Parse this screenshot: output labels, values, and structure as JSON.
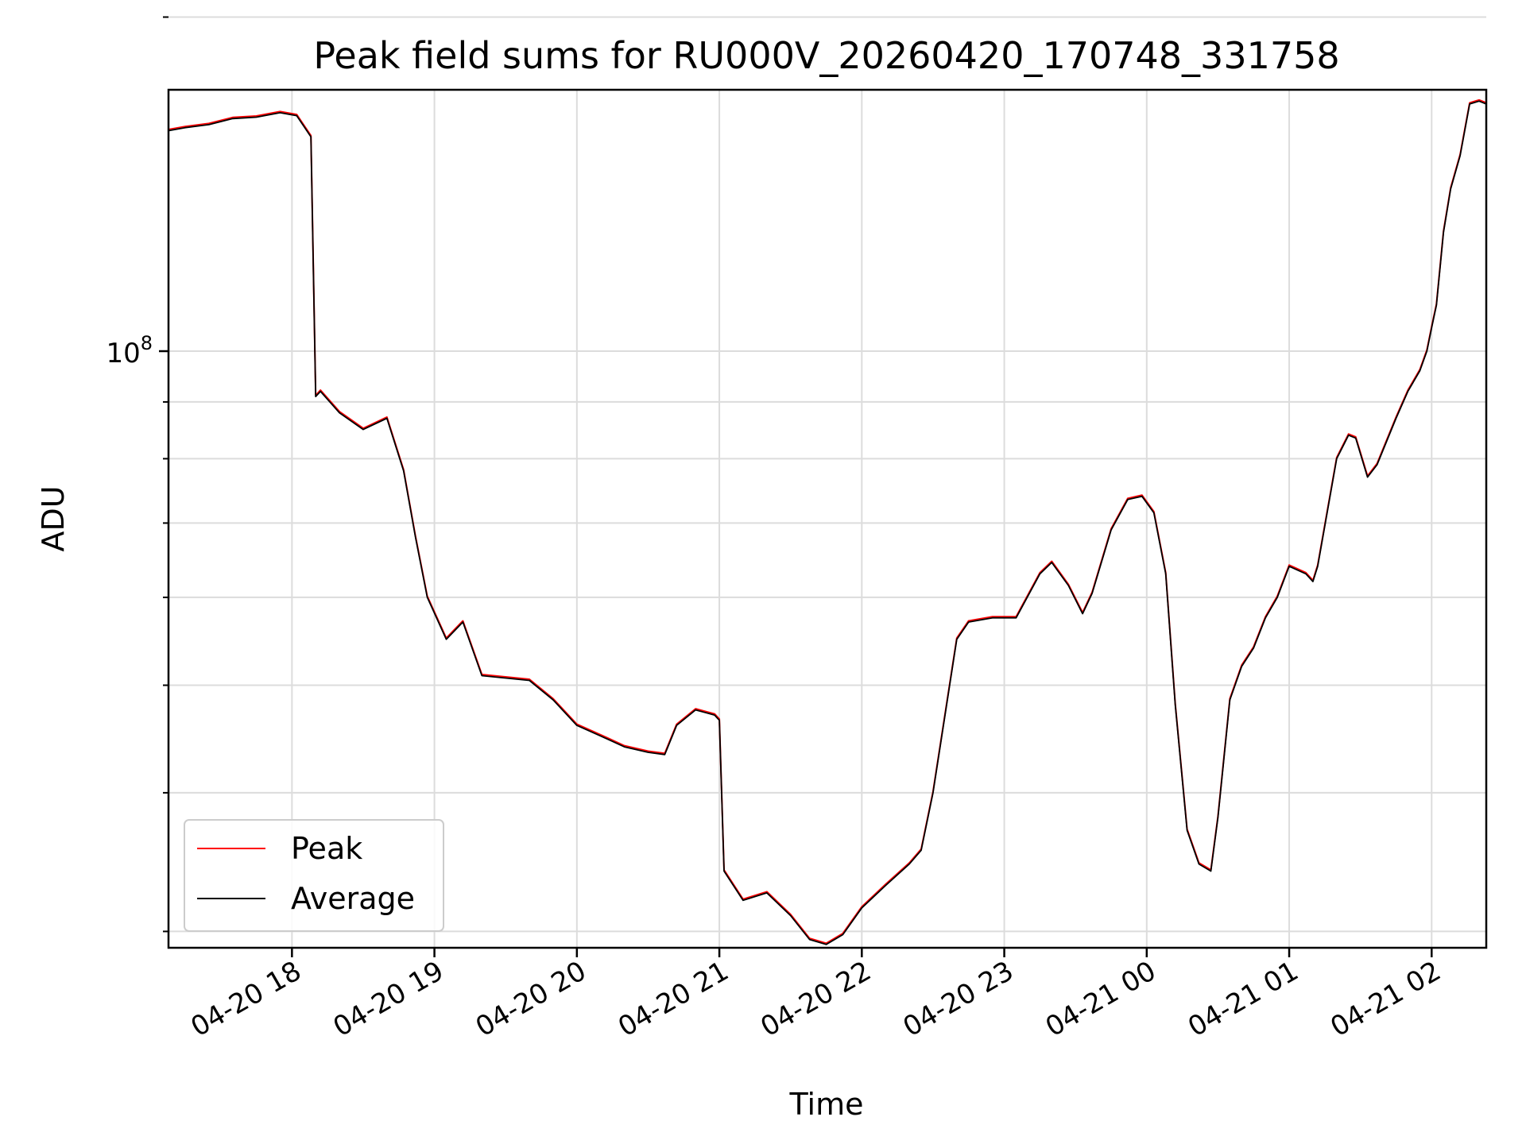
{
  "chart_data": {
    "type": "line",
    "title": "Peak field sums for RU000V_20260420_170748_331758",
    "xlabel": "Time",
    "ylabel": "ADU",
    "y_scale": "log",
    "grid": true,
    "legend_position": "lower-left",
    "xlim": [
      "2026-04-20 17:08",
      "2026-04-21 02:23"
    ],
    "ylim": [
      29000000,
      172000000
    ],
    "x_ticks": [
      {
        "t": "2026-04-20 18:00",
        "label": "04-20 18"
      },
      {
        "t": "2026-04-20 19:00",
        "label": "04-20 19"
      },
      {
        "t": "2026-04-20 20:00",
        "label": "04-20 20"
      },
      {
        "t": "2026-04-20 21:00",
        "label": "04-20 21"
      },
      {
        "t": "2026-04-20 22:00",
        "label": "04-20 22"
      },
      {
        "t": "2026-04-20 23:00",
        "label": "04-20 23"
      },
      {
        "t": "2026-04-21 00:00",
        "label": "04-21 00"
      },
      {
        "t": "2026-04-21 01:00",
        "label": "04-21 01"
      },
      {
        "t": "2026-04-21 02:00",
        "label": "04-21 02"
      }
    ],
    "y_major_ticks": [
      {
        "value": 100000000,
        "label_base": "10",
        "label_exp": "8"
      }
    ],
    "y_minor_ticks": [
      30000000,
      40000000,
      50000000,
      60000000,
      70000000,
      80000000,
      90000000,
      200000000
    ],
    "series": [
      {
        "name": "Peak",
        "color": "#ff0000"
      },
      {
        "name": "Average",
        "color": "#000000"
      }
    ],
    "x": [
      "2026-04-20 17:08",
      "2026-04-20 17:15",
      "2026-04-20 17:25",
      "2026-04-20 17:35",
      "2026-04-20 17:45",
      "2026-04-20 17:55",
      "2026-04-20 18:02",
      "2026-04-20 18:08",
      "2026-04-20 18:10",
      "2026-04-20 18:12",
      "2026-04-20 18:20",
      "2026-04-20 18:30",
      "2026-04-20 18:40",
      "2026-04-20 18:47",
      "2026-04-20 18:52",
      "2026-04-20 18:57",
      "2026-04-20 19:05",
      "2026-04-20 19:12",
      "2026-04-20 19:20",
      "2026-04-20 19:40",
      "2026-04-20 19:50",
      "2026-04-20 20:00",
      "2026-04-20 20:10",
      "2026-04-20 20:20",
      "2026-04-20 20:30",
      "2026-04-20 20:37",
      "2026-04-20 20:42",
      "2026-04-20 20:50",
      "2026-04-20 20:58",
      "2026-04-20 21:00",
      "2026-04-20 21:02",
      "2026-04-20 21:10",
      "2026-04-20 21:20",
      "2026-04-20 21:30",
      "2026-04-20 21:38",
      "2026-04-20 21:45",
      "2026-04-20 21:52",
      "2026-04-20 22:00",
      "2026-04-20 22:10",
      "2026-04-20 22:20",
      "2026-04-20 22:25",
      "2026-04-20 22:30",
      "2026-04-20 22:40",
      "2026-04-20 22:45",
      "2026-04-20 22:55",
      "2026-04-20 23:05",
      "2026-04-20 23:15",
      "2026-04-20 23:20",
      "2026-04-20 23:27",
      "2026-04-20 23:33",
      "2026-04-20 23:37",
      "2026-04-20 23:45",
      "2026-04-20 23:52",
      "2026-04-20 23:58",
      "2026-04-21 00:03",
      "2026-04-21 00:08",
      "2026-04-21 00:12",
      "2026-04-21 00:17",
      "2026-04-21 00:22",
      "2026-04-21 00:27",
      "2026-04-21 00:30",
      "2026-04-21 00:35",
      "2026-04-21 00:40",
      "2026-04-21 00:45",
      "2026-04-21 00:50",
      "2026-04-21 00:55",
      "2026-04-21 01:00",
      "2026-04-21 01:07",
      "2026-04-21 01:10",
      "2026-04-21 01:12",
      "2026-04-21 01:20",
      "2026-04-21 01:25",
      "2026-04-21 01:28",
      "2026-04-21 01:33",
      "2026-04-21 01:37",
      "2026-04-21 01:45",
      "2026-04-21 01:50",
      "2026-04-21 01:55",
      "2026-04-21 01:58",
      "2026-04-21 02:00",
      "2026-04-21 02:02",
      "2026-04-21 02:05",
      "2026-04-21 02:08",
      "2026-04-21 02:12",
      "2026-04-21 02:16",
      "2026-04-21 02:20",
      "2026-04-21 02:23"
    ],
    "y_average": [
      158000000,
      159000000,
      160000000,
      162000000,
      162500000,
      164000000,
      163000000,
      156000000,
      91000000,
      92000000,
      88000000,
      85000000,
      87000000,
      78000000,
      68000000,
      60000000,
      55000000,
      57000000,
      51000000,
      50500000,
      48500000,
      46000000,
      45000000,
      44000000,
      43500000,
      43300000,
      46000000,
      47500000,
      47000000,
      46500000,
      34000000,
      32000000,
      32500000,
      31000000,
      29500000,
      29200000,
      29800000,
      31500000,
      33000000,
      34500000,
      35500000,
      40000000,
      55000000,
      57000000,
      57500000,
      57500000,
      63000000,
      64500000,
      61500000,
      58000000,
      60500000,
      69000000,
      73500000,
      74000000,
      71500000,
      63000000,
      48000000,
      37000000,
      34500000,
      34000000,
      38000000,
      48500000,
      52000000,
      54000000,
      57500000,
      60000000,
      64000000,
      63000000,
      62000000,
      64000000,
      80000000,
      84000000,
      83500000,
      77000000,
      79000000,
      87000000,
      92000000,
      96000000,
      100000000,
      105000000,
      110000000,
      128000000,
      140000000,
      150000000,
      167000000,
      168000000,
      167000000
    ]
  }
}
